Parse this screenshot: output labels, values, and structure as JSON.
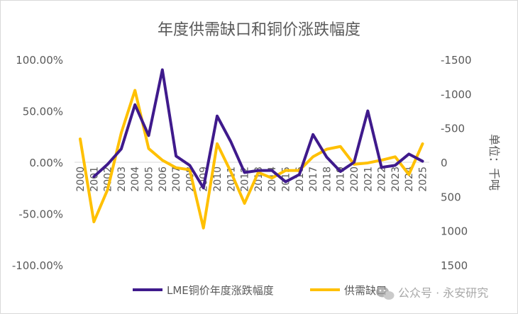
{
  "chart_data": {
    "type": "line",
    "title": "年度供需缺口和铜价涨跌幅度",
    "categories": [
      "2000",
      "2001",
      "2002",
      "2003",
      "2004",
      "2005",
      "2006",
      "2007",
      "2008",
      "2009",
      "2010",
      "2011",
      "2012",
      "2013",
      "2014",
      "2015",
      "2016",
      "2017",
      "2018",
      "2019",
      "2020",
      "2021",
      "2022",
      "2023",
      "2024",
      "2025"
    ],
    "series": [
      {
        "name": "LME铜价年度涨跌幅度",
        "axis": "left",
        "color": "#3f1a8c",
        "values": [
          null,
          -14,
          -2,
          13,
          56,
          26,
          90,
          6,
          -3,
          -25,
          45,
          20,
          -10,
          -8,
          -8,
          -19,
          -12,
          27,
          5,
          -9,
          0,
          50,
          -5,
          -3,
          8,
          1
        ]
      },
      {
        "name": "供需缺口",
        "axis": "right",
        "color": "#ffc000",
        "values": [
          -340,
          870,
          400,
          -430,
          -1050,
          -200,
          -30,
          80,
          110,
          960,
          -270,
          140,
          600,
          150,
          230,
          120,
          120,
          -80,
          -190,
          -230,
          30,
          10,
          -30,
          -80,
          180,
          -270
        ]
      }
    ],
    "y_left": {
      "min": -100,
      "max": 100,
      "step": 50,
      "tick_labels": [
        "100.00%",
        "50.00%",
        "0.00%",
        "-50.00%",
        "-100.00%"
      ]
    },
    "y_right": {
      "min": -1500,
      "max": 1500,
      "step": 500,
      "inverted": true,
      "label": "单位：千吨",
      "tick_labels": [
        "-1500",
        "-1000",
        "-500",
        "0",
        "500",
        "1000",
        "1500"
      ]
    },
    "legend": [
      "LME铜价年度涨跌幅度",
      "供需缺口"
    ],
    "legend_position": "bottom",
    "watermark": "公众号 · 永安研究"
  }
}
